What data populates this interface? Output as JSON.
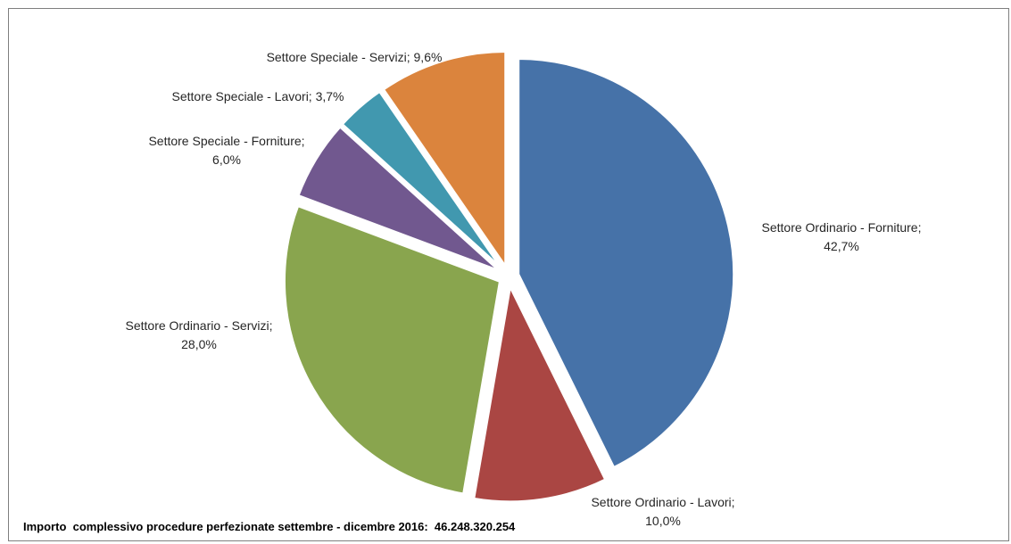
{
  "chart_data": {
    "type": "pie",
    "title": "",
    "slices": [
      {
        "name": "Settore Ordinario - Forniture",
        "value": 42.7,
        "label_lines": [
          "Settore Ordinario - Forniture;",
          "42,7%"
        ],
        "color": "#4672A8"
      },
      {
        "name": "Settore Ordinario - Lavori",
        "value": 10.0,
        "label_lines": [
          "Settore Ordinario - Lavori;",
          "10,0%"
        ],
        "color": "#AA4643"
      },
      {
        "name": "Settore Ordinario - Servizi",
        "value": 28.0,
        "label_lines": [
          "Settore Ordinario - Servizi;",
          "28,0%"
        ],
        "color": "#89A54E"
      },
      {
        "name": "Settore Speciale - Forniture",
        "value": 6.0,
        "label_lines": [
          "Settore Speciale - Forniture;",
          "6,0%"
        ],
        "color": "#71588F"
      },
      {
        "name": "Settore Speciale - Lavori",
        "value": 3.7,
        "label_lines": [
          "Settore Speciale - Lavori; 3,7%"
        ],
        "color": "#4198AF"
      },
      {
        "name": "Settore Speciale - Servizi",
        "value": 9.6,
        "label_lines": [
          "Settore Speciale - Servizi; 9,6%"
        ],
        "color": "#DB843D"
      }
    ],
    "start_angle_deg": 0,
    "direction": "clockwise",
    "exploded": true,
    "legend": "none"
  },
  "footnote": "Importo  complessivo procedure perfezionate settembre - dicembre 2016:  46.248.320.254"
}
